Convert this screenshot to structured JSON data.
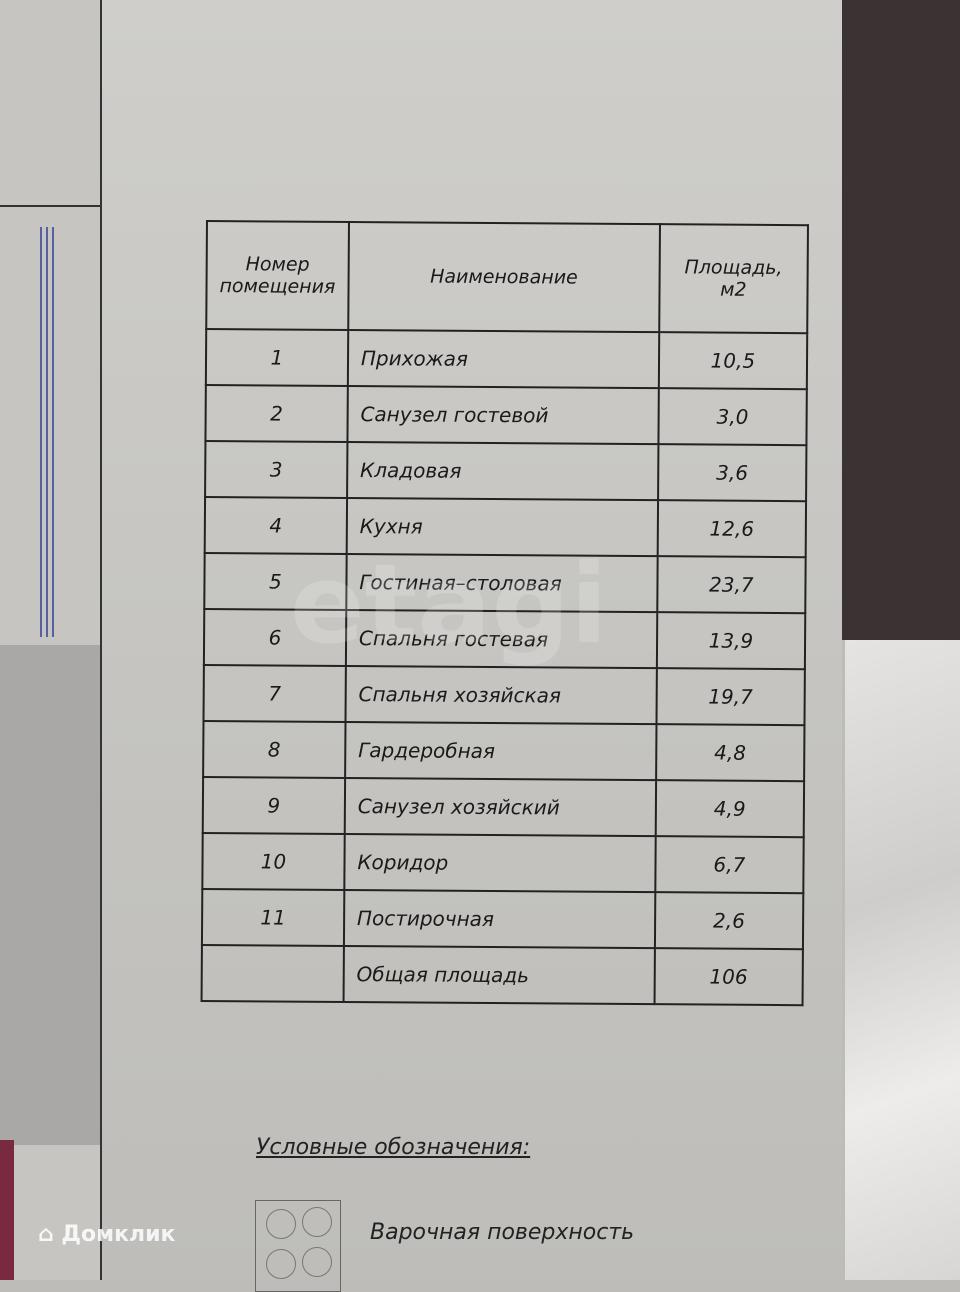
{
  "table": {
    "headers": [
      "Номер помещения",
      "Наименование",
      "Площадь, м2"
    ],
    "rows": [
      {
        "num": "1",
        "name": "Прихожая",
        "area": "10,5"
      },
      {
        "num": "2",
        "name": "Санузел гостевой",
        "area": "3,0"
      },
      {
        "num": "3",
        "name": "Кладовая",
        "area": "3,6"
      },
      {
        "num": "4",
        "name": "Кухня",
        "area": "12,6"
      },
      {
        "num": "5",
        "name": "Гостиная–столовая",
        "area": "23,7"
      },
      {
        "num": "6",
        "name": "Спальня гостевая",
        "area": "13,9"
      },
      {
        "num": "7",
        "name": "Спальня хозяйская",
        "area": "19,7"
      },
      {
        "num": "8",
        "name": "Гардеробная",
        "area": "4,8"
      },
      {
        "num": "9",
        "name": "Санузел хозяйский",
        "area": "4,9"
      },
      {
        "num": "10",
        "name": "Коридор",
        "area": "6,7"
      },
      {
        "num": "11",
        "name": "Постирочная",
        "area": "2,6"
      },
      {
        "num": "",
        "name": "Общая площадь",
        "area": "106"
      }
    ]
  },
  "legend": {
    "title": "Условные обозначения:",
    "items": [
      {
        "icon": "hob-icon",
        "label": "Варочная поверхность"
      }
    ]
  },
  "watermarks": {
    "etagi": "etagi",
    "domclick": "Домклик"
  }
}
